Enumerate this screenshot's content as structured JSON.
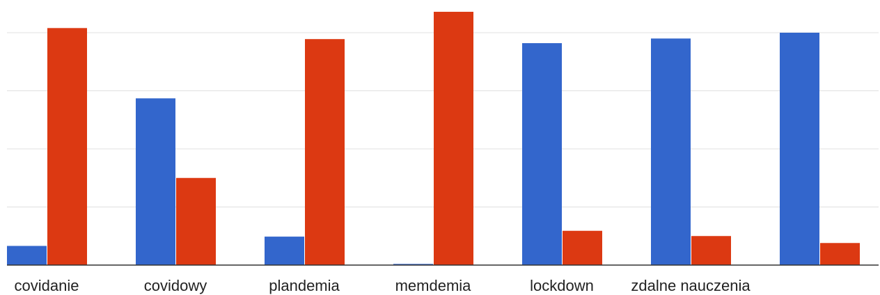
{
  "chart_data": {
    "type": "bar",
    "title": "",
    "xlabel": "",
    "ylabel": "",
    "categories": [
      "covidanie",
      "covidowy",
      "plandemia",
      "memdemia",
      "lockdown",
      "zdalne nauczenia",
      ""
    ],
    "series": [
      {
        "color": "#3366cc",
        "values": [
          3.3,
          28.7,
          4.9,
          0.2,
          38.2,
          39.0,
          40.0
        ]
      },
      {
        "color": "#dc3912",
        "values": [
          40.8,
          15.0,
          38.9,
          43.6,
          5.9,
          5.0,
          3.8
        ]
      }
    ],
    "ylim": [
      0,
      45
    ],
    "grid": true,
    "legend": "none"
  }
}
